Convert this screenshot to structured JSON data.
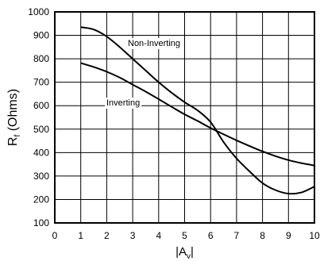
{
  "chart_data": {
    "type": "line",
    "title": "",
    "xlabel": "|Av|",
    "ylabel": "Rf (Ohms)",
    "xlim": [
      0,
      10
    ],
    "ylim": [
      100,
      1000
    ],
    "xticks": [
      0,
      1,
      2,
      3,
      4,
      5,
      6,
      7,
      8,
      9,
      10
    ],
    "yticks": [
      100,
      200,
      300,
      400,
      500,
      600,
      700,
      800,
      900,
      1000
    ],
    "grid": true,
    "legend": "none",
    "series": [
      {
        "name": "Non-Inverting",
        "color": "#000000",
        "x": [
          1,
          1.5,
          2,
          2.5,
          3,
          3.5,
          4,
          4.5,
          5,
          5.5,
          6,
          6.5,
          7,
          7.5,
          8,
          8.5,
          9,
          9.5,
          10
        ],
        "y": [
          935,
          925,
          895,
          850,
          800,
          750,
          700,
          655,
          615,
          580,
          530,
          445,
          375,
          320,
          270,
          240,
          225,
          230,
          255
        ]
      },
      {
        "name": "Inverting",
        "color": "#000000",
        "x": [
          1,
          1.5,
          2,
          2.5,
          3,
          3.5,
          4,
          4.5,
          5,
          5.5,
          6,
          6.5,
          7,
          7.5,
          8,
          8.5,
          9,
          9.5,
          10
        ],
        "y": [
          782,
          765,
          745,
          720,
          690,
          660,
          628,
          595,
          563,
          535,
          505,
          478,
          452,
          428,
          405,
          385,
          368,
          355,
          345
        ]
      }
    ]
  }
}
